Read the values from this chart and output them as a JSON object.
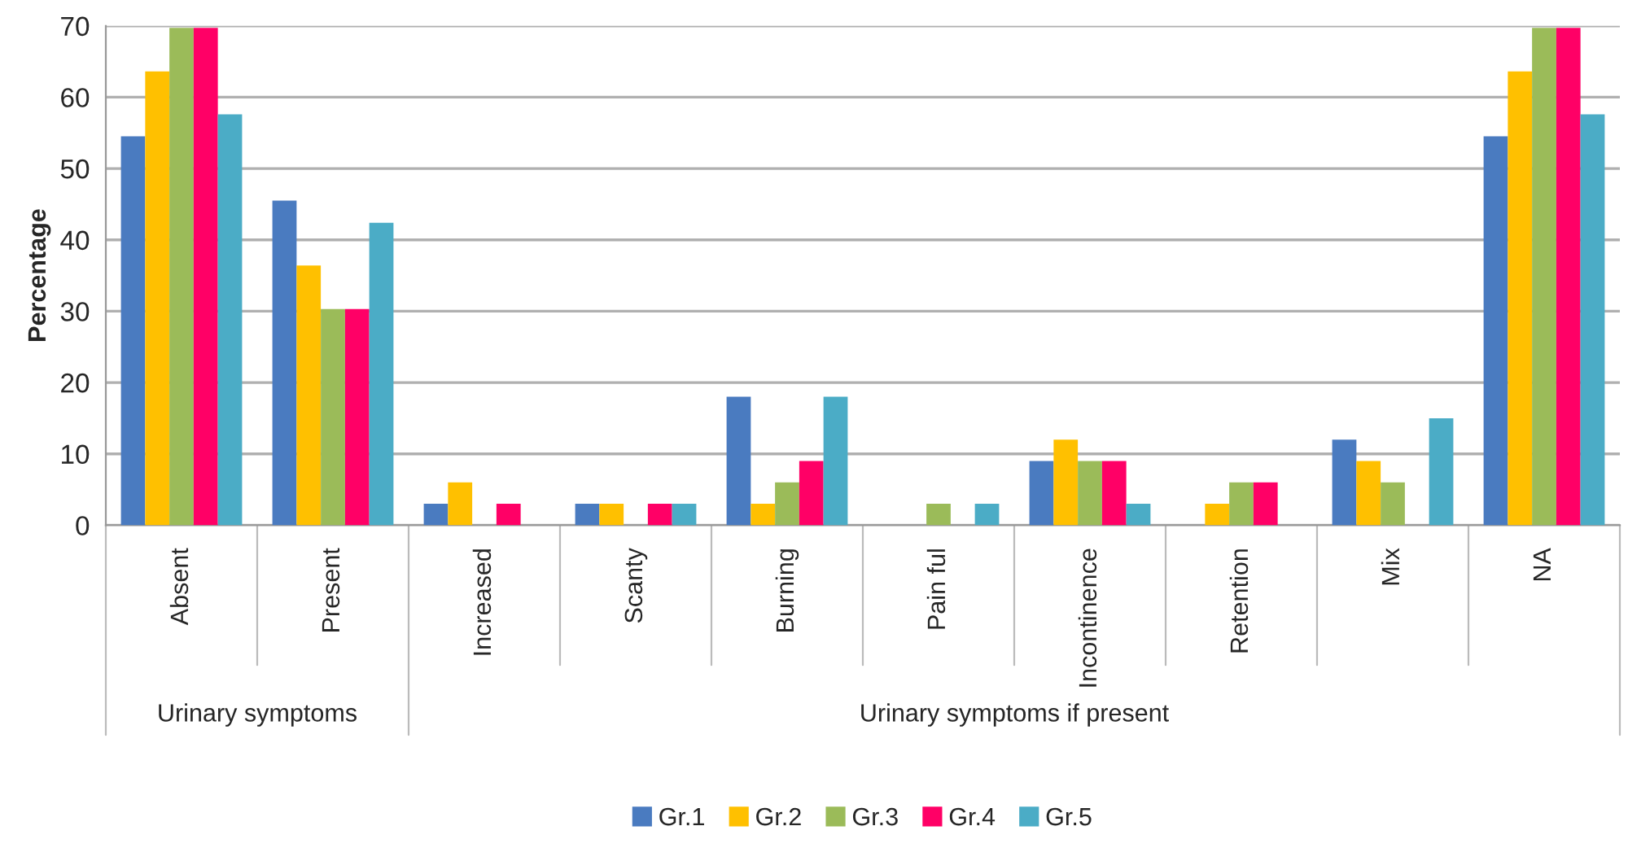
{
  "chart_data": {
    "type": "bar",
    "ylabel": "Percentage",
    "categories": [
      "Absent",
      "Present",
      "Increased",
      "Scanty",
      "Burning",
      "Pain ful",
      "Incontinence",
      "Retention",
      "Mix",
      "NA"
    ],
    "series": [
      {
        "name": "Gr.1",
        "color": "#4a7bc0",
        "values": [
          54.5,
          45.5,
          3,
          3,
          18,
          0,
          9,
          0,
          12,
          54.5
        ]
      },
      {
        "name": "Gr.2",
        "color": "#ffc000",
        "values": [
          63.6,
          36.4,
          6,
          3,
          3,
          0,
          12,
          3,
          9,
          63.6
        ]
      },
      {
        "name": "Gr.3",
        "color": "#9bbb59",
        "values": [
          69.7,
          30.3,
          0,
          0,
          6,
          3,
          9,
          6,
          6,
          69.7
        ]
      },
      {
        "name": "Gr.4",
        "color": "#ff0066",
        "values": [
          69.7,
          30.3,
          3,
          3,
          9,
          0,
          9,
          6,
          0,
          69.7
        ]
      },
      {
        "name": "Gr.5",
        "color": "#4bacc6",
        "values": [
          57.6,
          42.4,
          0,
          3,
          18,
          3,
          3,
          0,
          15,
          57.6
        ]
      }
    ],
    "annotations": [
      "Urinary symptoms",
      "Urinary symptoms if present"
    ],
    "ylim": [
      0,
      70
    ],
    "yticks": [
      0,
      10,
      20,
      30,
      40,
      50,
      60,
      70
    ],
    "grid": "y",
    "legend": "bottom"
  }
}
